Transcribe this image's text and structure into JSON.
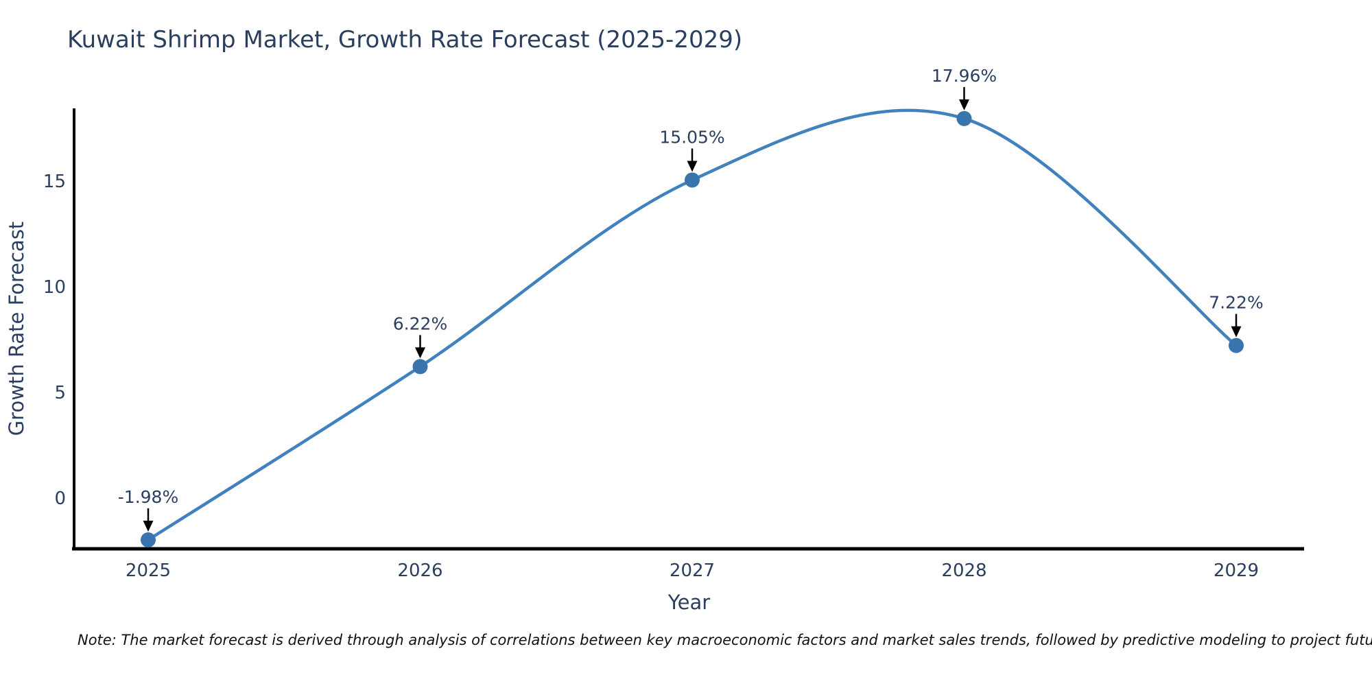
{
  "title": "Kuwait Shrimp Market, Growth Rate Forecast (2025-2029)",
  "note": "Note: The market forecast is derived through analysis of correlations between key macroeconomic factors and market sales trends, followed by predictive modeling to project future sales",
  "chart_data": {
    "type": "line",
    "line_shape": "spline",
    "title": "Kuwait Shrimp Market, Growth Rate Forecast (2025-2029)",
    "xlabel": "Year",
    "ylabel": "Growth Rate Forecast",
    "x": [
      2025,
      2026,
      2027,
      2028,
      2029
    ],
    "values": [
      -1.98,
      6.22,
      15.05,
      17.96,
      7.22
    ],
    "point_labels": [
      "-1.98%",
      "6.22%",
      "15.05%",
      "17.96%",
      "7.22%"
    ],
    "xtick_labels": [
      "2025",
      "2026",
      "2027",
      "2028",
      "2029"
    ],
    "yticks": [
      0,
      5,
      10,
      15
    ],
    "xlim": [
      2024.72,
      2029.25
    ],
    "ylim": [
      -2.4,
      18.45
    ],
    "grid": false,
    "legend": false,
    "colors": {
      "line": "#4181bd",
      "marker": "#3a74ae",
      "axis": "#000000",
      "text": "#2a3f5f",
      "annotation_text": "#2a3f5f",
      "annotation_arrow": "#000000",
      "background": "#ffffff"
    }
  }
}
